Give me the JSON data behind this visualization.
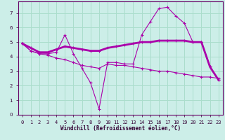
{
  "xlabel": "Windchill (Refroidissement éolien,°C)",
  "background_color": "#cceee8",
  "grid_color": "#aaddcc",
  "line_color": "#aa00aa",
  "xlim": [
    -0.5,
    23.5
  ],
  "ylim": [
    0,
    7.8
  ],
  "xticks": [
    0,
    1,
    2,
    3,
    4,
    5,
    6,
    7,
    8,
    9,
    10,
    11,
    12,
    13,
    14,
    15,
    16,
    17,
    18,
    19,
    20,
    21,
    22,
    23
  ],
  "yticks": [
    0,
    1,
    2,
    3,
    4,
    5,
    6,
    7
  ],
  "line1_x": [
    0,
    1,
    2,
    3,
    4,
    5,
    6,
    7,
    8,
    9,
    10,
    11,
    12,
    13,
    14,
    15,
    16,
    17,
    18,
    19,
    20,
    21,
    22,
    23
  ],
  "line1_y": [
    4.9,
    4.4,
    4.2,
    4.2,
    4.3,
    5.5,
    4.2,
    3.2,
    2.2,
    0.4,
    3.6,
    3.6,
    3.5,
    3.5,
    5.5,
    6.4,
    7.3,
    7.4,
    6.8,
    6.3,
    5.0,
    5.0,
    3.3,
    2.4
  ],
  "line2_x": [
    0,
    1,
    2,
    3,
    4,
    5,
    6,
    7,
    8,
    9,
    10,
    11,
    12,
    13,
    14,
    15,
    16,
    17,
    18,
    19,
    20,
    21,
    22,
    23
  ],
  "line2_y": [
    4.9,
    4.6,
    4.3,
    4.3,
    4.5,
    4.7,
    4.6,
    4.5,
    4.4,
    4.4,
    4.6,
    4.7,
    4.8,
    4.9,
    5.0,
    5.0,
    5.1,
    5.1,
    5.1,
    5.1,
    5.0,
    5.0,
    3.3,
    2.4
  ],
  "line3_x": [
    0,
    1,
    2,
    3,
    4,
    5,
    6,
    7,
    8,
    9,
    10,
    11,
    12,
    13,
    14,
    15,
    16,
    17,
    18,
    19,
    20,
    21,
    22,
    23
  ],
  "line3_y": [
    4.9,
    4.4,
    4.2,
    4.1,
    3.9,
    3.8,
    3.6,
    3.4,
    3.3,
    3.2,
    3.5,
    3.4,
    3.4,
    3.3,
    3.2,
    3.1,
    3.0,
    3.0,
    2.9,
    2.8,
    2.7,
    2.6,
    2.6,
    2.5
  ]
}
